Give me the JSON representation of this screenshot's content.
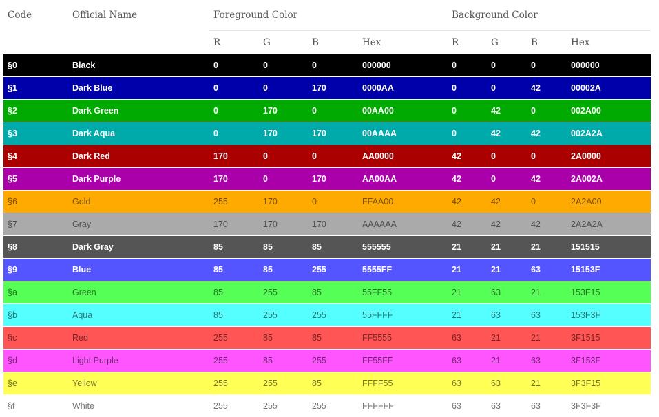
{
  "headers": {
    "code": "Code",
    "name": "Official Name",
    "foreground": "Foreground Color",
    "background": "Background Color",
    "r": "R",
    "g": "G",
    "b": "B",
    "hex": "Hex"
  },
  "rows": [
    {
      "code": "§0",
      "name": "Black",
      "fr": "0",
      "fg": "0",
      "fb": "0",
      "fhex": "000000",
      "br": "0",
      "bg": "0",
      "bb": "0",
      "bhex": "000000",
      "color": "#000000",
      "dark": true
    },
    {
      "code": "§1",
      "name": "Dark Blue",
      "fr": "0",
      "fg": "0",
      "fb": "170",
      "fhex": "0000AA",
      "br": "0",
      "bg": "0",
      "bb": "42",
      "bhex": "00002A",
      "color": "#0000AA",
      "dark": true
    },
    {
      "code": "§2",
      "name": "Dark Green",
      "fr": "0",
      "fg": "170",
      "fb": "0",
      "fhex": "00AA00",
      "br": "0",
      "bg": "42",
      "bb": "0",
      "bhex": "002A00",
      "color": "#00AA00",
      "dark": true
    },
    {
      "code": "§3",
      "name": "Dark Aqua",
      "fr": "0",
      "fg": "170",
      "fb": "170",
      "fhex": "00AAAA",
      "br": "0",
      "bg": "42",
      "bb": "42",
      "bhex": "002A2A",
      "color": "#00AAAA",
      "dark": true
    },
    {
      "code": "§4",
      "name": "Dark Red",
      "fr": "170",
      "fg": "0",
      "fb": "0",
      "fhex": "AA0000",
      "br": "42",
      "bg": "0",
      "bb": "0",
      "bhex": "2A0000",
      "color": "#AA0000",
      "dark": true
    },
    {
      "code": "§5",
      "name": "Dark Purple",
      "fr": "170",
      "fg": "0",
      "fb": "170",
      "fhex": "AA00AA",
      "br": "42",
      "bg": "0",
      "bb": "42",
      "bhex": "2A002A",
      "color": "#AA00AA",
      "dark": true
    },
    {
      "code": "§6",
      "name": "Gold",
      "fr": "255",
      "fg": "170",
      "fb": "0",
      "fhex": "FFAA00",
      "br": "42",
      "bg": "42",
      "bb": "0",
      "bhex": "2A2A00",
      "color": "#FFAA00",
      "dark": false
    },
    {
      "code": "§7",
      "name": "Gray",
      "fr": "170",
      "fg": "170",
      "fb": "170",
      "fhex": "AAAAAA",
      "br": "42",
      "bg": "42",
      "bb": "42",
      "bhex": "2A2A2A",
      "color": "#AAAAAA",
      "dark": false
    },
    {
      "code": "§8",
      "name": "Dark Gray",
      "fr": "85",
      "fg": "85",
      "fb": "85",
      "fhex": "555555",
      "br": "21",
      "bg": "21",
      "bb": "21",
      "bhex": "151515",
      "color": "#555555",
      "dark": true
    },
    {
      "code": "§9",
      "name": "Blue",
      "fr": "85",
      "fg": "85",
      "fb": "255",
      "fhex": "5555FF",
      "br": "21",
      "bg": "21",
      "bb": "63",
      "bhex": "15153F",
      "color": "#5555FF",
      "dark": true
    },
    {
      "code": "§a",
      "name": "Green",
      "fr": "85",
      "fg": "255",
      "fb": "85",
      "fhex": "55FF55",
      "br": "21",
      "bg": "63",
      "bb": "21",
      "bhex": "153F15",
      "color": "#55FF55",
      "dark": false
    },
    {
      "code": "§b",
      "name": "Aqua",
      "fr": "85",
      "fg": "255",
      "fb": "255",
      "fhex": "55FFFF",
      "br": "21",
      "bg": "63",
      "bb": "63",
      "bhex": "153F3F",
      "color": "#55FFFF",
      "dark": false
    },
    {
      "code": "§c",
      "name": "Red",
      "fr": "255",
      "fg": "85",
      "fb": "85",
      "fhex": "FF5555",
      "br": "63",
      "bg": "21",
      "bb": "21",
      "bhex": "3F1515",
      "color": "#FF5555",
      "dark": false
    },
    {
      "code": "§d",
      "name": "Light Purple",
      "fr": "255",
      "fg": "85",
      "fb": "255",
      "fhex": "FF55FF",
      "br": "63",
      "bg": "21",
      "bb": "63",
      "bhex": "3F153F",
      "color": "#FF55FF",
      "dark": false
    },
    {
      "code": "§e",
      "name": "Yellow",
      "fr": "255",
      "fg": "255",
      "fb": "85",
      "fhex": "FFFF55",
      "br": "63",
      "bg": "63",
      "bb": "21",
      "bhex": "3F3F15",
      "color": "#FFFF55",
      "dark": false
    },
    {
      "code": "§f",
      "name": "White",
      "fr": "255",
      "fg": "255",
      "fb": "255",
      "fhex": "FFFFFF",
      "br": "63",
      "bg": "63",
      "bb": "63",
      "bhex": "3F3F3F",
      "color": "#FFFFFF",
      "dark": false
    }
  ]
}
